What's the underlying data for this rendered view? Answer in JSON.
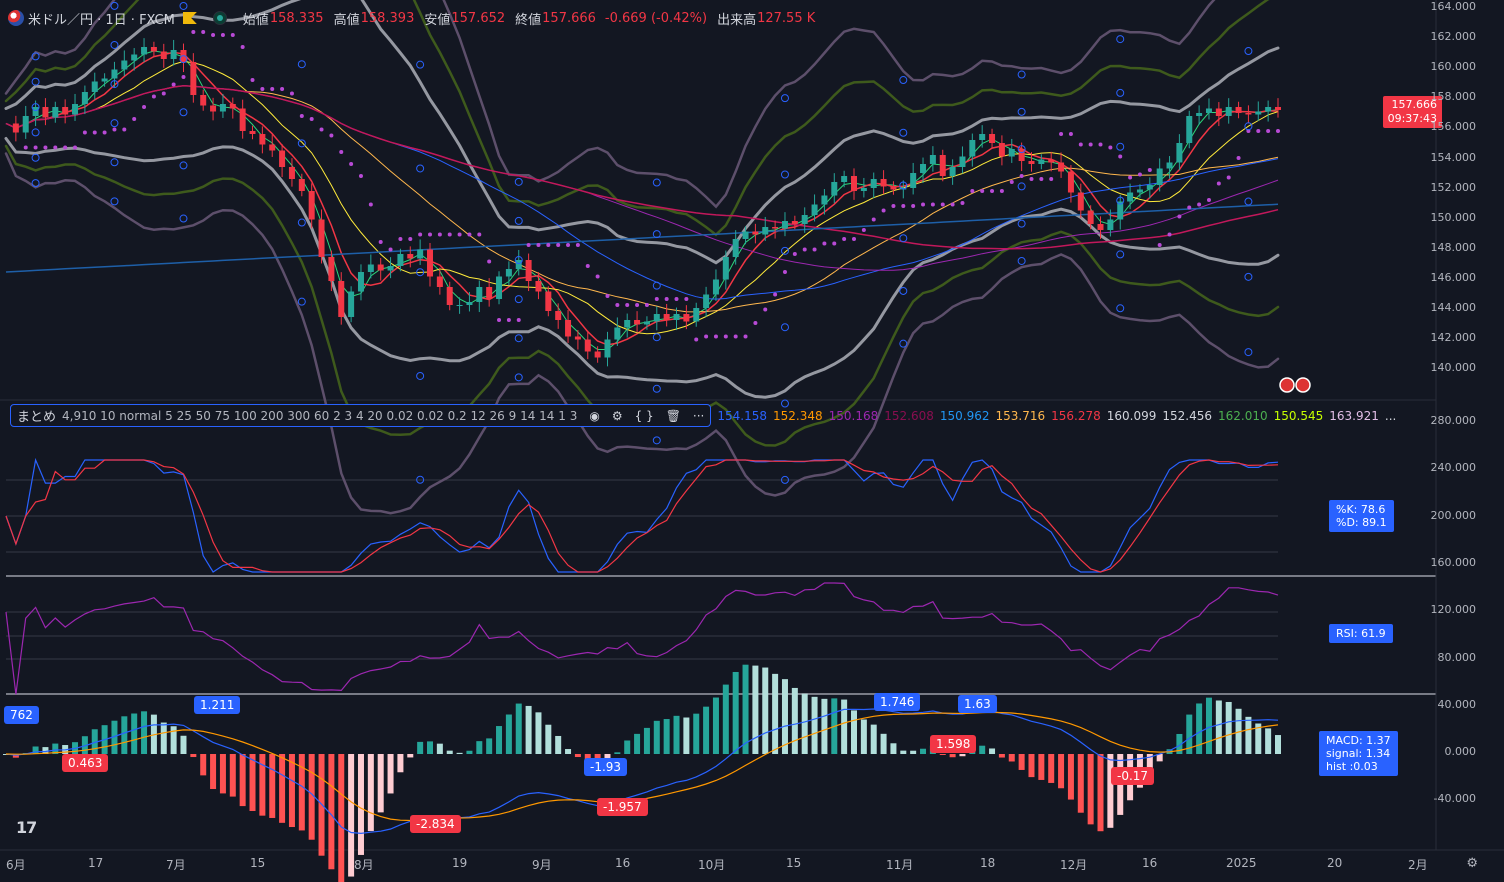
{
  "header": {
    "symbol": "米ドル／円 · 1日 · FXCM",
    "open_label": "始値",
    "open": "158.335",
    "high_label": "高値",
    "high": "158.393",
    "low_label": "安値",
    "low": "157.652",
    "close_label": "終値",
    "close": "157.666",
    "change": "-0.669 (-0.42%)",
    "volume_label": "出来高",
    "volume": "127.55 K"
  },
  "indicator_bar": {
    "name": "まとめ",
    "params": "4,910 10 normal 5 25 50 75 100 200 300 60 2 3 4 20 0.02 0.02 0.2 12 26 9 14 14 1 3",
    "values": [
      {
        "v": "154.158",
        "c": "#2962ff"
      },
      {
        "v": "152.348",
        "c": "#ff9800"
      },
      {
        "v": "150.168",
        "c": "#9c27b0"
      },
      {
        "v": "152.608",
        "c": "#880e4f"
      },
      {
        "v": "150.962",
        "c": "#2196f3"
      },
      {
        "v": "153.716",
        "c": "#ffb74d"
      },
      {
        "v": "156.278",
        "c": "#f23645"
      },
      {
        "v": "160.099",
        "c": "#d1d4dc"
      },
      {
        "v": "152.456",
        "c": "#d1d4dc"
      },
      {
        "v": "162.010",
        "c": "#4caf50"
      },
      {
        "v": "150.545",
        "c": "#c6ff00"
      },
      {
        "v": "163.921",
        "c": "#e1bee7"
      }
    ],
    "more": "..."
  },
  "price_tag": {
    "price": "157.666",
    "countdown": "09:37:43",
    "color": "#f23645"
  },
  "stoch_tag": {
    "k": "%K: 78.6",
    "d": "%D: 89.1"
  },
  "rsi_tag": "RSI: 61.9",
  "macd_tag": {
    "macd": "MACD: 1.37",
    "signal": "signal: 1.34",
    "hist": "hist :0.03"
  },
  "macd_labels": [
    {
      "t": "762",
      "c": "#2962ff",
      "x": 4,
      "y": 706
    },
    {
      "t": "1.211",
      "c": "#2962ff",
      "x": 194,
      "y": 696
    },
    {
      "t": "0.463",
      "c": "#f23645",
      "x": 62,
      "y": 754
    },
    {
      "t": "-2.834",
      "c": "#f23645",
      "x": 410,
      "y": 815
    },
    {
      "t": "-1.93",
      "c": "#2962ff",
      "x": 584,
      "y": 758
    },
    {
      "t": "-1.957",
      "c": "#f23645",
      "x": 597,
      "y": 798
    },
    {
      "t": "1.746",
      "c": "#2962ff",
      "x": 874,
      "y": 693
    },
    {
      "t": "1.63",
      "c": "#2962ff",
      "x": 958,
      "y": 695
    },
    {
      "t": "1.598",
      "c": "#f23645",
      "x": 930,
      "y": 735
    },
    {
      "t": "-0.17",
      "c": "#f23645",
      "x": 1111,
      "y": 767
    }
  ],
  "price_axis": [
    "164.000",
    "162.000",
    "160.000",
    "158.000",
    "156.000",
    "154.000",
    "152.000",
    "150.000",
    "148.000",
    "146.000",
    "144.000",
    "142.000",
    "140.000"
  ],
  "stoch_axis": [
    "280.000",
    "240.000",
    "200.000",
    "160.000",
    "120.000",
    "80.000",
    "40.000",
    "0.000",
    "-40.000"
  ],
  "x_axis": [
    "6月",
    "17",
    "7月",
    "15",
    "8月",
    "19",
    "9月",
    "16",
    "10月",
    "15",
    "11月",
    "18",
    "12月",
    "16",
    "2025",
    "20",
    "2月"
  ],
  "chart_data": {
    "type": "candlestick",
    "title": "米ドル／円 · 1日 · FXCM",
    "ylim": [
      138.5,
      164.5
    ],
    "x_ticks": [
      "6月",
      "17",
      "7月",
      "15",
      "8月",
      "19",
      "9月",
      "16",
      "10月",
      "15",
      "11月",
      "18",
      "12月",
      "16",
      "2025",
      "20",
      "2月"
    ],
    "close_path": [
      156.8,
      156.2,
      157.3,
      157.9,
      157.2,
      157.9,
      157.4,
      158.1,
      158.9,
      159.6,
      159.8,
      160.4,
      161.0,
      161.4,
      161.9,
      161.6,
      161.1,
      161.7,
      160.9,
      158.7,
      158.0,
      157.6,
      158.1,
      157.8,
      156.3,
      156.1,
      155.4,
      155.0,
      153.9,
      153.1,
      152.3,
      150.4,
      147.9,
      146.3,
      143.9,
      145.6,
      146.9,
      147.4,
      147.0,
      147.3,
      148.1,
      147.8,
      148.4,
      146.6,
      145.9,
      144.7,
      144.7,
      144.9,
      145.9,
      145.1,
      146.6,
      147.1,
      147.7,
      146.3,
      145.6,
      144.3,
      143.7,
      142.6,
      142.4,
      141.6,
      141.2,
      142.4,
      143.2,
      143.7,
      143.4,
      143.6,
      144.1,
      143.7,
      144.1,
      143.6,
      144.5,
      145.4,
      146.4,
      147.9,
      149.1,
      149.6,
      149.4,
      149.9,
      149.8,
      150.3,
      150.1,
      150.7,
      151.4,
      152.0,
      152.9,
      153.3,
      152.3,
      152.5,
      153.1,
      152.6,
      152.4,
      152.5,
      153.5,
      154.1,
      154.7,
      153.3,
      153.9,
      154.6,
      155.7,
      156.1,
      155.5,
      154.6,
      155.1,
      154.3,
      154.1,
      154.4,
      154.2,
      153.6,
      152.2,
      151.0,
      150.1,
      149.7,
      150.4,
      151.6,
      152.2,
      152.4,
      152.7,
      153.8,
      154.2,
      155.5,
      157.3,
      157.5,
      157.8,
      157.3,
      157.9,
      157.5,
      157.4,
      157.6,
      157.9,
      157.7
    ],
    "series": [
      {
        "name": "5 SMA",
        "color": "#2962ff",
        "last": 154.158
      },
      {
        "name": "25 SMA",
        "color": "#ff9800",
        "last": 152.348
      },
      {
        "name": "50 SMA",
        "color": "#9c27b0",
        "last": 150.168
      },
      {
        "name": "75 SMA",
        "color": "#880e4f",
        "last": 152.608
      },
      {
        "name": "100 SMA",
        "color": "#2196f3",
        "last": 150.962
      },
      {
        "name": "200 SMA",
        "color": "#ffb74d",
        "last": 153.716
      },
      {
        "name": "300 SMA",
        "color": "#f23645",
        "last": 156.278
      },
      {
        "name": "BB upper 2σ",
        "color": "#d1d4dc",
        "last": 160.099
      },
      {
        "name": "BB lower 2σ",
        "color": "#d1d4dc",
        "last": 152.456
      },
      {
        "name": "BB upper 3σ",
        "color": "#4caf50",
        "last": 162.01
      },
      {
        "name": "BB lower 3σ",
        "color": "#c6ff00",
        "last": 150.545
      },
      {
        "name": "BB upper 4σ",
        "color": "#e1bee7",
        "last": 163.921
      }
    ],
    "last_price": 157.666,
    "oscillators": {
      "stoch_k": 78.6,
      "stoch_d": 89.1,
      "rsi": 61.9,
      "macd": 1.37,
      "signal": 1.34,
      "hist": 0.03
    }
  }
}
